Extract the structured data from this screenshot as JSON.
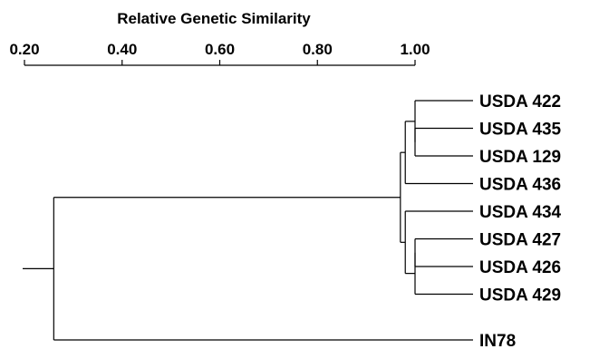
{
  "axis": {
    "title": "Relative Genetic Similarity",
    "ticks": [
      "0.20",
      "0.40",
      "0.60",
      "0.80",
      "1.00"
    ],
    "tick_values": [
      0.2,
      0.4,
      0.6,
      0.8,
      1.0
    ],
    "range": [
      0.2,
      1.0
    ]
  },
  "leaves": [
    "USDA 422",
    "USDA 435",
    "USDA 129",
    "USDA 436",
    "USDA 434",
    "USDA 427",
    "USDA 426",
    "USDA 429",
    "IN78"
  ],
  "merges": [
    {
      "children": [
        "USDA 435",
        "USDA 129"
      ],
      "similarity": 1.0
    },
    {
      "children": [
        "USDA 422",
        "c1"
      ],
      "similarity": 1.0
    },
    {
      "children": [
        "c2",
        "USDA 436"
      ],
      "similarity": 0.98
    },
    {
      "children": [
        "USDA 427",
        "USDA 426"
      ],
      "similarity": 1.0
    },
    {
      "children": [
        "c4",
        "USDA 429"
      ],
      "similarity": 1.0
    },
    {
      "children": [
        "USDA 434",
        "c5"
      ],
      "similarity": 0.98
    },
    {
      "children": [
        "c3",
        "c6"
      ],
      "similarity": 0.97
    },
    {
      "children": [
        "c7",
        "IN78"
      ],
      "similarity": 0.26
    }
  ]
}
